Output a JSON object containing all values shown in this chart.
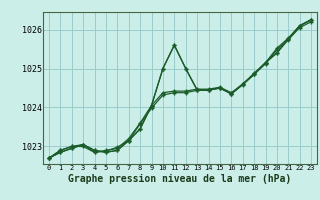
{
  "title": "Graphe pression niveau de la mer (hPa)",
  "bg_color": "#cceee8",
  "grid_color": "#99cccc",
  "line_color": "#1a5c2a",
  "xlim": [
    -0.5,
    23.5
  ],
  "ylim": [
    1022.55,
    1026.45
  ],
  "yticks": [
    1023,
    1024,
    1025,
    1026
  ],
  "xticks": [
    0,
    1,
    2,
    3,
    4,
    5,
    6,
    7,
    8,
    9,
    10,
    11,
    12,
    13,
    14,
    15,
    16,
    17,
    18,
    19,
    20,
    21,
    22,
    23
  ],
  "series": [
    [
      1022.7,
      1022.85,
      1022.95,
      1023.05,
      1022.9,
      1022.85,
      1022.9,
      1023.15,
      1023.45,
      1024.05,
      1025.0,
      1025.6,
      1025.0,
      1024.45,
      1024.45,
      1024.5,
      1024.35,
      1024.6,
      1024.85,
      1025.15,
      1025.4,
      1025.75,
      1026.1,
      1026.25
    ],
    [
      1022.7,
      1022.85,
      1022.95,
      1023.05,
      1022.9,
      1022.85,
      1022.9,
      1023.15,
      1023.45,
      1024.05,
      1025.0,
      1025.6,
      1025.0,
      1024.45,
      1024.45,
      1024.5,
      1024.35,
      1024.6,
      1024.85,
      1025.15,
      1025.4,
      1025.75,
      1026.1,
      1026.25
    ],
    [
      1022.7,
      1022.9,
      1023.0,
      1023.05,
      1022.85,
      1022.9,
      1022.95,
      1023.2,
      1023.6,
      1024.05,
      1024.38,
      1024.42,
      1024.42,
      1024.47,
      1024.47,
      1024.52,
      1024.38,
      1024.6,
      1024.88,
      1025.15,
      1025.52,
      1025.78,
      1026.1,
      1026.25
    ],
    [
      1022.7,
      1022.9,
      1023.0,
      1023.0,
      1022.85,
      1022.88,
      1022.98,
      1023.15,
      1023.58,
      1023.98,
      1024.32,
      1024.38,
      1024.38,
      1024.44,
      1024.44,
      1024.5,
      1024.35,
      1024.58,
      1024.85,
      1025.12,
      1025.48,
      1025.74,
      1026.05,
      1026.2
    ]
  ],
  "ylabel_fontsize": 6,
  "xlabel_fontsize": 7,
  "xtick_fontsize": 5,
  "ytick_fontsize": 6
}
